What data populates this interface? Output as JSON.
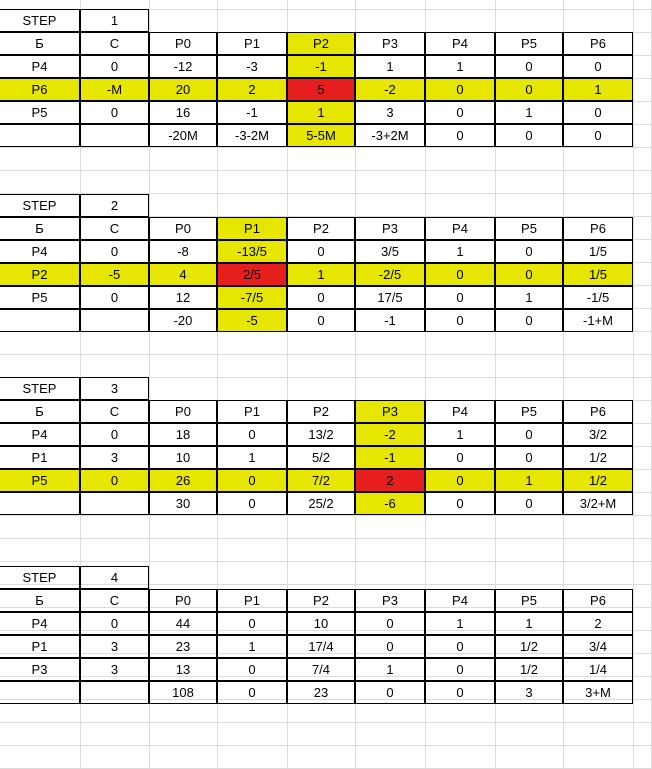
{
  "colors": {
    "highlight": "#e6e600",
    "pivot": "#e61e1e",
    "border": "#000000",
    "gridline": "#dcdcdc"
  },
  "header": [
    "Б",
    "C",
    "P0",
    "P1",
    "P2",
    "P3",
    "P4",
    "P5",
    "P6"
  ],
  "steps": [
    {
      "label": "STEP",
      "number": "1",
      "pivot_row": 1,
      "pivot_col": 4,
      "rows": [
        [
          "P4",
          "0",
          "-12",
          "-3",
          "-1",
          "1",
          "1",
          "0",
          "0"
        ],
        [
          "P6",
          "-M",
          "20",
          "2",
          "5",
          "-2",
          "0",
          "0",
          "1"
        ],
        [
          "P5",
          "0",
          "16",
          "-1",
          "1",
          "3",
          "0",
          "1",
          "0"
        ],
        [
          "",
          "",
          "-20M",
          "-3-2M",
          "5-5M",
          "-3+2M",
          "0",
          "0",
          "0"
        ]
      ]
    },
    {
      "label": "STEP",
      "number": "2",
      "pivot_row": 1,
      "pivot_col": 3,
      "rows": [
        [
          "P4",
          "0",
          "-8",
          "-13/5",
          "0",
          "3/5",
          "1",
          "0",
          "1/5"
        ],
        [
          "P2",
          "-5",
          "4",
          "2/5",
          "1",
          "-2/5",
          "0",
          "0",
          "1/5"
        ],
        [
          "P5",
          "0",
          "12",
          "-7/5",
          "0",
          "17/5",
          "0",
          "1",
          "-1/5"
        ],
        [
          "",
          "",
          "-20",
          "-5",
          "0",
          "-1",
          "0",
          "0",
          "-1+M"
        ]
      ]
    },
    {
      "label": "STEP",
      "number": "3",
      "pivot_row": 2,
      "pivot_col": 5,
      "rows": [
        [
          "P4",
          "0",
          "18",
          "0",
          "13/2",
          "-2",
          "1",
          "0",
          "3/2"
        ],
        [
          "P1",
          "3",
          "10",
          "1",
          "5/2",
          "-1",
          "0",
          "0",
          "1/2"
        ],
        [
          "P5",
          "0",
          "26",
          "0",
          "7/2",
          "2",
          "0",
          "1",
          "1/2"
        ],
        [
          "",
          "",
          "30",
          "0",
          "25/2",
          "-6",
          "0",
          "0",
          "3/2+M"
        ]
      ]
    },
    {
      "label": "STEP",
      "number": "4",
      "pivot_row": -1,
      "pivot_col": -1,
      "rows": [
        [
          "P4",
          "0",
          "44",
          "0",
          "10",
          "0",
          "1",
          "1",
          "2"
        ],
        [
          "P1",
          "3",
          "23",
          "1",
          "17/4",
          "0",
          "0",
          "1/2",
          "3/4"
        ],
        [
          "P3",
          "3",
          "13",
          "0",
          "7/4",
          "1",
          "0",
          "1/2",
          "1/4"
        ],
        [
          "",
          "",
          "108",
          "0",
          "23",
          "0",
          "0",
          "3",
          "3+M"
        ]
      ]
    }
  ]
}
